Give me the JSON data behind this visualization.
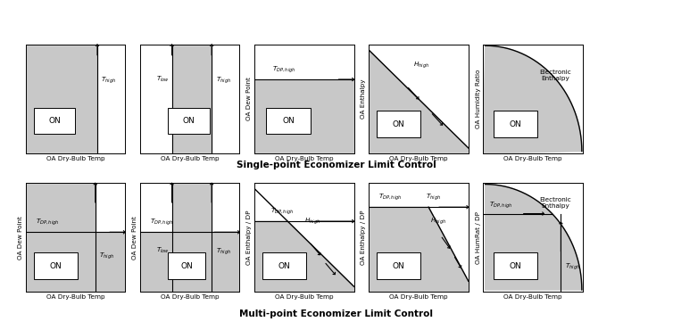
{
  "fig_width": 7.54,
  "fig_height": 3.7,
  "bg_color": "#ffffff",
  "gray_fill": "#c8c8c8",
  "title1": "Single-point Economizer Limit Control",
  "title2": "Multi-point Economizer Limit Control",
  "row1_ylabels": [
    "",
    "",
    "OA Dew Point",
    "OA Enthalpy",
    "OA Humidity Ratio"
  ],
  "row2_ylabels": [
    "OA Dew Point",
    "OA Dew Point",
    "OA Enthalpy / DP",
    "OA Enthalpy / DP",
    "OA HumRat / DP"
  ],
  "xlabels": "OA Dry-Bulb Temp"
}
